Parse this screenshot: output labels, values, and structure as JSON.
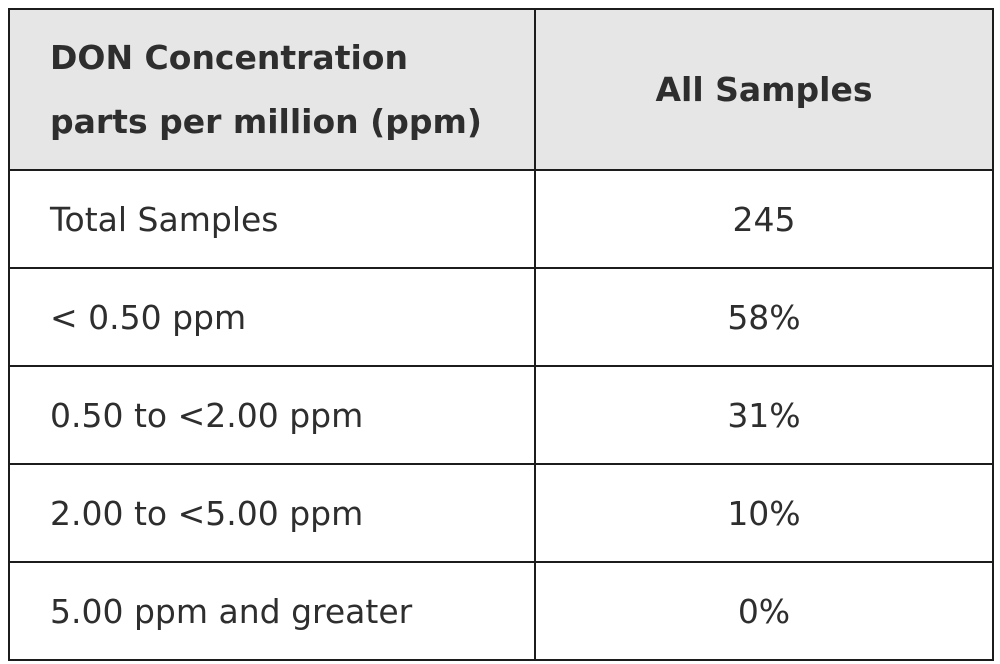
{
  "chart_data": {
    "type": "table",
    "columns": [
      {
        "lines": [
          "DON Concentration",
          "parts per million (ppm)"
        ]
      },
      {
        "lines": [
          "All Samples"
        ]
      }
    ],
    "rows": [
      {
        "label": "Total Samples",
        "value": "245"
      },
      {
        "label": "< 0.50 ppm",
        "value": "58%"
      },
      {
        "label": "0.50 to <2.00 ppm",
        "value": "31%"
      },
      {
        "label": "2.00 to <5.00 ppm",
        "value": "10%"
      },
      {
        "label": "5.00 ppm and greater",
        "value": "0%"
      }
    ]
  },
  "colors": {
    "header_background": "#e6e6e6",
    "border": "#1c1c1c",
    "text": "#2e2e2e"
  }
}
